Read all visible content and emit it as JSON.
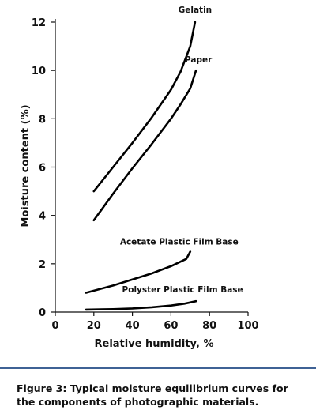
{
  "chart_data": {
    "type": "line",
    "xlabel": "Relative humidity, %",
    "ylabel": "Moisture content (%)",
    "xlim": [
      0,
      100
    ],
    "ylim": [
      0,
      12
    ],
    "x_ticks": [
      "0",
      "20",
      "40",
      "60",
      "80",
      "100"
    ],
    "y_ticks": [
      "0",
      "2",
      "4",
      "6",
      "8",
      "10",
      "12"
    ],
    "grid": false,
    "legend": "none",
    "series": [
      {
        "name": "Gelatin",
        "x": [
          20,
          30,
          40,
          50,
          60,
          65,
          70,
          72.5
        ],
        "y": [
          5.0,
          6.0,
          7.0,
          8.05,
          9.2,
          9.95,
          11.0,
          12.0
        ]
      },
      {
        "name": "Paper",
        "x": [
          20,
          30,
          40,
          50,
          60,
          65,
          70,
          73
        ],
        "y": [
          3.8,
          4.9,
          5.95,
          6.95,
          8.0,
          8.6,
          9.25,
          10.0
        ]
      },
      {
        "name": "Acetate Plastic Film Base",
        "x": [
          16,
          30,
          40,
          50,
          60,
          68,
          70
        ],
        "y": [
          0.8,
          1.1,
          1.35,
          1.6,
          1.9,
          2.2,
          2.5
        ]
      },
      {
        "name": "Polyster Plastic Film Base",
        "x": [
          16,
          30,
          40,
          50,
          60,
          67,
          73
        ],
        "y": [
          0.1,
          0.12,
          0.15,
          0.2,
          0.27,
          0.35,
          0.45
        ]
      }
    ]
  },
  "caption": "Figure 3: Typical moisture equilibrium curves for the components of photographic materials.",
  "colors": {
    "rule": "#3f6295",
    "ink": "#111111"
  }
}
